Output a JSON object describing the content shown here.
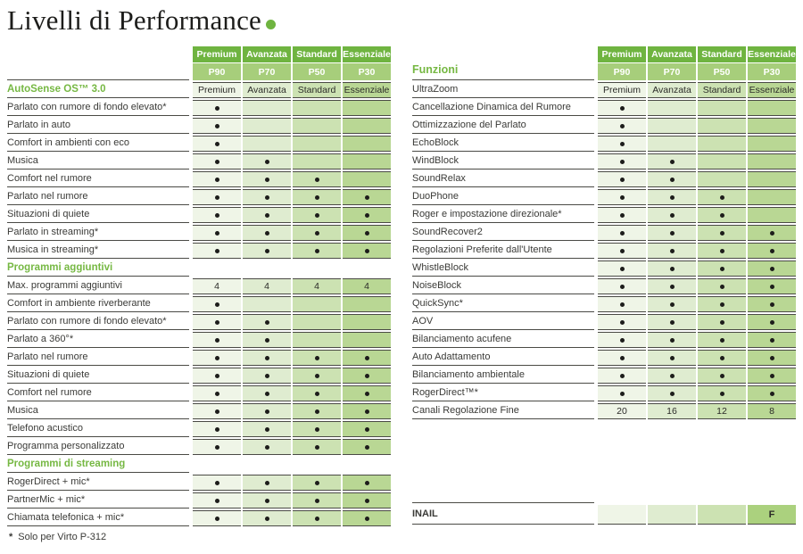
{
  "page": {
    "title": "Livelli di Performance",
    "footnote_marker": "*",
    "footnote_text": "Solo per Virto P-312"
  },
  "colors": {
    "header_green": "#6fb440",
    "subheader_green": "#a7ce7b",
    "section_green": "#76b843",
    "column_tints": [
      "#eff5e7",
      "#dfecd0",
      "#cce2b2",
      "#b9d794"
    ],
    "inail_last_tint": "#abd17e",
    "line": "#4a4a45",
    "text": "#3a3a37",
    "dot": "#1d1d1b"
  },
  "column_headers": [
    {
      "name": "Premium",
      "code": "P90"
    },
    {
      "name": "Avanzata",
      "code": "P70"
    },
    {
      "name": "Standard",
      "code": "P50"
    },
    {
      "name": "Essenziale",
      "code": "P30"
    }
  ],
  "left_table": {
    "header_label": "",
    "rows": [
      {
        "type": "section",
        "label": "AutoSense OS™ 3.0",
        "cells": [
          "Premium",
          "Avanzata",
          "Standard",
          "Essenziale"
        ]
      },
      {
        "type": "feature",
        "label": "Parlato con rumore di fondo elevato*",
        "cells": [
          "dot",
          "",
          "",
          ""
        ]
      },
      {
        "type": "feature",
        "label": "Parlato in auto",
        "cells": [
          "dot",
          "",
          "",
          ""
        ]
      },
      {
        "type": "feature",
        "label": "Comfort in ambienti con eco",
        "cells": [
          "dot",
          "",
          "",
          ""
        ]
      },
      {
        "type": "feature",
        "label": "Musica",
        "cells": [
          "dot",
          "dot",
          "",
          ""
        ]
      },
      {
        "type": "feature",
        "label": "Comfort nel rumore",
        "cells": [
          "dot",
          "dot",
          "dot",
          ""
        ]
      },
      {
        "type": "feature",
        "label": "Parlato nel rumore",
        "cells": [
          "dot",
          "dot",
          "dot",
          "dot"
        ]
      },
      {
        "type": "feature",
        "label": "Situazioni di quiete",
        "cells": [
          "dot",
          "dot",
          "dot",
          "dot"
        ]
      },
      {
        "type": "feature",
        "label": "Parlato in streaming*",
        "cells": [
          "dot",
          "dot",
          "dot",
          "dot"
        ]
      },
      {
        "type": "feature",
        "label": "Musica in streaming*",
        "cells": [
          "dot",
          "dot",
          "dot",
          "dot"
        ]
      },
      {
        "type": "section",
        "label": "Programmi aggiuntivi"
      },
      {
        "type": "feature",
        "label": "Max. programmi aggiuntivi",
        "cells": [
          "4",
          "4",
          "4",
          "4"
        ]
      },
      {
        "type": "feature",
        "label": "Comfort in ambiente riverberante",
        "cells": [
          "dot",
          "",
          "",
          ""
        ]
      },
      {
        "type": "feature",
        "label": "Parlato con rumore di fondo elevato*",
        "cells": [
          "dot",
          "dot",
          "",
          ""
        ]
      },
      {
        "type": "feature",
        "label": "Parlato a 360°*",
        "cells": [
          "dot",
          "dot",
          "",
          ""
        ]
      },
      {
        "type": "feature",
        "label": "Parlato nel rumore",
        "cells": [
          "dot",
          "dot",
          "dot",
          "dot"
        ]
      },
      {
        "type": "feature",
        "label": "Situazioni di quiete",
        "cells": [
          "dot",
          "dot",
          "dot",
          "dot"
        ]
      },
      {
        "type": "feature",
        "label": "Comfort nel rumore",
        "cells": [
          "dot",
          "dot",
          "dot",
          "dot"
        ]
      },
      {
        "type": "feature",
        "label": "Musica",
        "cells": [
          "dot",
          "dot",
          "dot",
          "dot"
        ]
      },
      {
        "type": "feature",
        "label": "Telefono acustico",
        "cells": [
          "dot",
          "dot",
          "dot",
          "dot"
        ]
      },
      {
        "type": "feature",
        "label": "Programma personalizzato",
        "cells": [
          "dot",
          "dot",
          "dot",
          "dot"
        ]
      },
      {
        "type": "section",
        "label": "Programmi di streaming"
      },
      {
        "type": "feature",
        "label": "RogerDirect + mic*",
        "cells": [
          "dot",
          "dot",
          "dot",
          "dot"
        ]
      },
      {
        "type": "feature",
        "label": "PartnerMic + mic*",
        "cells": [
          "dot",
          "dot",
          "dot",
          "dot"
        ]
      },
      {
        "type": "feature",
        "label": "Chiamata telefonica + mic*",
        "cells": [
          "dot",
          "dot",
          "dot",
          "dot"
        ]
      }
    ]
  },
  "right_table": {
    "header_label": "Funzioni",
    "rows": [
      {
        "type": "feature",
        "label": "UltraZoom",
        "cells": [
          "Premium",
          "Avanzata",
          "Standard",
          "Essenziale"
        ]
      },
      {
        "type": "feature",
        "label": "Cancellazione Dinamica del Rumore",
        "cells": [
          "dot",
          "",
          "",
          ""
        ]
      },
      {
        "type": "feature",
        "label": "Ottimizzazione del Parlato",
        "cells": [
          "dot",
          "",
          "",
          ""
        ]
      },
      {
        "type": "feature",
        "label": "EchoBlock",
        "cells": [
          "dot",
          "",
          "",
          ""
        ]
      },
      {
        "type": "feature",
        "label": "WindBlock",
        "cells": [
          "dot",
          "dot",
          "",
          ""
        ]
      },
      {
        "type": "feature",
        "label": "SoundRelax",
        "cells": [
          "dot",
          "dot",
          "",
          ""
        ]
      },
      {
        "type": "feature",
        "label": "DuoPhone",
        "cells": [
          "dot",
          "dot",
          "dot",
          ""
        ]
      },
      {
        "type": "feature",
        "label": "Roger e impostazione direzionale*",
        "cells": [
          "dot",
          "dot",
          "dot",
          ""
        ]
      },
      {
        "type": "feature",
        "label": "SoundRecover2",
        "cells": [
          "dot",
          "dot",
          "dot",
          "dot"
        ]
      },
      {
        "type": "feature",
        "label": "Regolazioni Preferite dall'Utente",
        "cells": [
          "dot",
          "dot",
          "dot",
          "dot"
        ]
      },
      {
        "type": "feature",
        "label": "WhistleBlock",
        "cells": [
          "dot",
          "dot",
          "dot",
          "dot"
        ]
      },
      {
        "type": "feature",
        "label": "NoiseBlock",
        "cells": [
          "dot",
          "dot",
          "dot",
          "dot"
        ]
      },
      {
        "type": "feature",
        "label": "QuickSync*",
        "cells": [
          "dot",
          "dot",
          "dot",
          "dot"
        ]
      },
      {
        "type": "feature",
        "label": "AOV",
        "cells": [
          "dot",
          "dot",
          "dot",
          "dot"
        ]
      },
      {
        "type": "feature",
        "label": "Bilanciamento acufene",
        "cells": [
          "dot",
          "dot",
          "dot",
          "dot"
        ]
      },
      {
        "type": "feature",
        "label": "Auto Adattamento",
        "cells": [
          "dot",
          "dot",
          "dot",
          "dot"
        ]
      },
      {
        "type": "feature",
        "label": "Bilanciamento ambientale",
        "cells": [
          "dot",
          "dot",
          "dot",
          "dot"
        ]
      },
      {
        "type": "feature",
        "label": "RogerDirect™*",
        "cells": [
          "dot",
          "dot",
          "dot",
          "dot"
        ]
      },
      {
        "type": "feature",
        "label": "Canali Regolazione Fine",
        "cells": [
          "20",
          "16",
          "12",
          "8"
        ]
      }
    ],
    "inail_row": {
      "label": "INAIL",
      "cells": [
        "",
        "",
        "",
        "F"
      ]
    }
  }
}
